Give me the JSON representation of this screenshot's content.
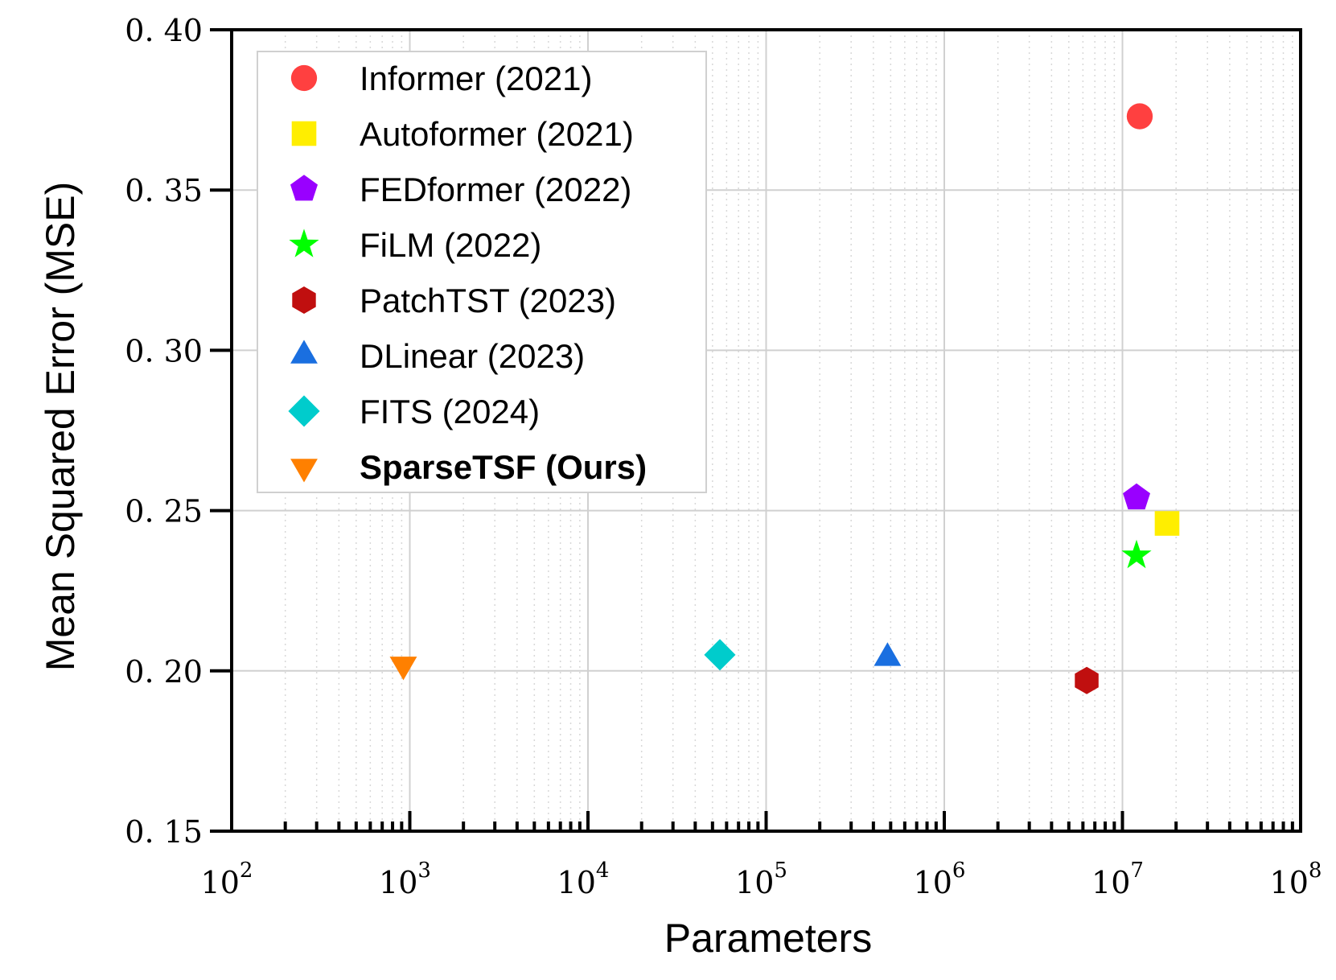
{
  "chart_data": {
    "type": "scatter",
    "title": "",
    "xlabel": "Parameters",
    "ylabel": "Mean Squared Error (MSE)",
    "xscale": "log",
    "xlim": [
      100,
      100000000
    ],
    "ylim": [
      0.15,
      0.4
    ],
    "x_ticks": [
      {
        "value": 100,
        "base": "10",
        "exp": "2"
      },
      {
        "value": 1000,
        "base": "10",
        "exp": "3"
      },
      {
        "value": 10000,
        "base": "10",
        "exp": "4"
      },
      {
        "value": 100000,
        "base": "10",
        "exp": "5"
      },
      {
        "value": 1000000,
        "base": "10",
        "exp": "6"
      },
      {
        "value": 10000000,
        "base": "10",
        "exp": "7"
      },
      {
        "value": 100000000,
        "base": "10",
        "exp": "8"
      }
    ],
    "y_ticks": [
      {
        "value": 0.15,
        "label": "0. 15"
      },
      {
        "value": 0.2,
        "label": "0. 20"
      },
      {
        "value": 0.25,
        "label": "0. 25"
      },
      {
        "value": 0.3,
        "label": "0. 30"
      },
      {
        "value": 0.35,
        "label": "0. 35"
      },
      {
        "value": 0.4,
        "label": "0. 40"
      }
    ],
    "grid": true,
    "minor_grid": "dotted",
    "legend_position": "top-left",
    "series": [
      {
        "name": "Informer (2021)",
        "marker": "circle",
        "color": "#ff4040",
        "bold": false,
        "x": 12500000,
        "y": 0.373
      },
      {
        "name": "Autoformer (2021)",
        "marker": "square",
        "color": "#ffee00",
        "bold": false,
        "x": 17800000,
        "y": 0.246
      },
      {
        "name": "FEDformer (2022)",
        "marker": "pentagon",
        "color": "#9900ff",
        "bold": false,
        "x": 12000000,
        "y": 0.254
      },
      {
        "name": "FiLM (2022)",
        "marker": "star",
        "color": "#00ff00",
        "bold": false,
        "x": 12000000,
        "y": 0.236
      },
      {
        "name": "PatchTST (2023)",
        "marker": "hexagon",
        "color": "#c00f0f",
        "bold": false,
        "x": 6300000,
        "y": 0.197
      },
      {
        "name": "DLinear (2023)",
        "marker": "triangle-up",
        "color": "#1a6fe0",
        "bold": false,
        "x": 480000,
        "y": 0.204
      },
      {
        "name": "FITS (2024)",
        "marker": "diamond",
        "color": "#00cccc",
        "bold": false,
        "x": 55000,
        "y": 0.205
      },
      {
        "name": "SparseTSF (Ours)",
        "marker": "triangle-down",
        "color": "#ff8000",
        "bold": true,
        "x": 920,
        "y": 0.202
      }
    ]
  }
}
